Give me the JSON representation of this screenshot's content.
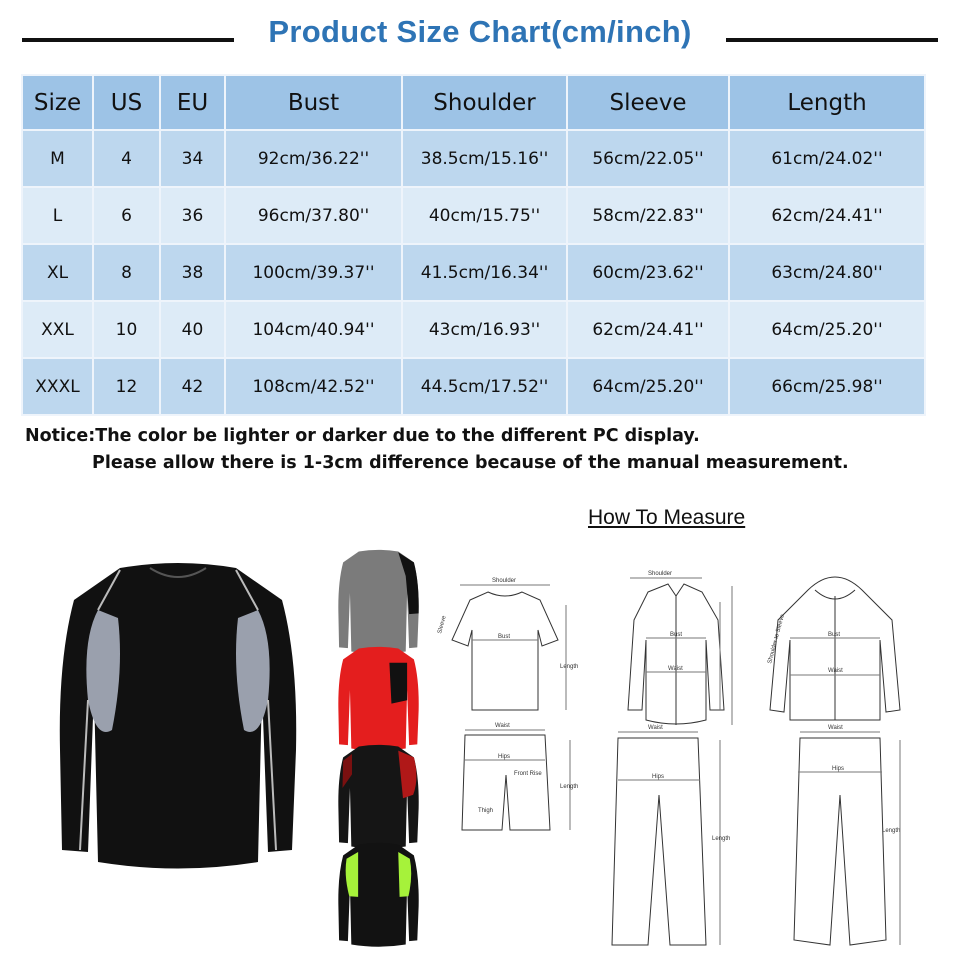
{
  "title": "Product Size Chart(cm/inch)",
  "table": {
    "headers": [
      "Size",
      "US",
      "EU",
      "Bust",
      "Shoulder",
      "Sleeve",
      "Length"
    ],
    "rows": [
      [
        "M",
        "4",
        "34",
        "92cm/36.22''",
        "38.5cm/15.16''",
        "56cm/22.05''",
        "61cm/24.02''"
      ],
      [
        "L",
        "6",
        "36",
        "96cm/37.80''",
        "40cm/15.75''",
        "58cm/22.83''",
        "62cm/24.41''"
      ],
      [
        "XL",
        "8",
        "38",
        "100cm/39.37''",
        "41.5cm/16.34''",
        "60cm/23.62''",
        "63cm/24.80''"
      ],
      [
        "XXL",
        "10",
        "40",
        "104cm/40.94''",
        "43cm/16.93''",
        "62cm/24.41''",
        "64cm/25.20''"
      ],
      [
        "XXXL",
        "12",
        "42",
        "108cm/42.52''",
        "44.5cm/17.52''",
        "64cm/25.20''",
        "66cm/25.98''"
      ]
    ]
  },
  "notice": {
    "line1": "Notice:The color be lighter or darker due to the different PC display.",
    "line2": "Please allow there is 1-3cm difference because of the manual measurement."
  },
  "measure": {
    "title": "How To Measure",
    "labels": {
      "shoulder": "Shoulder",
      "sleeve": "Sleeve",
      "bust": "Bust",
      "length": "Length",
      "waist": "Waist",
      "hips": "Hips",
      "front_rise": "Front Rise",
      "thigh": "Thigh",
      "shoulder_to_sleeve": "Shoulder to Sleeve"
    }
  },
  "colors": {
    "title": "#2e74b5",
    "header_bg": "#9dc3e6",
    "row_dark": "#bdd7ee",
    "row_light": "#ddebf7"
  },
  "product_variants": [
    "black-gray",
    "gray-black",
    "red-black",
    "black-red",
    "black-green"
  ]
}
